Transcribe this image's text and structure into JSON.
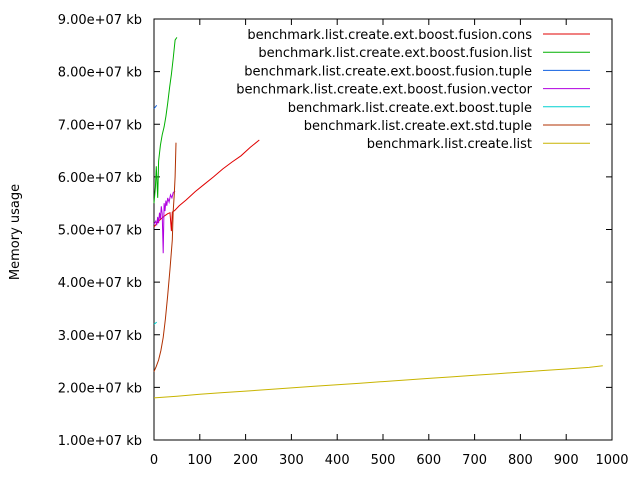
{
  "chart_data": {
    "type": "line",
    "title": "",
    "xlabel": "",
    "ylabel": "Memory usage",
    "xlim": [
      0,
      1000
    ],
    "ylim": [
      10000000,
      90000000
    ],
    "grid": false,
    "legend_position": "top-right",
    "x_ticks": [
      "0",
      "100",
      "200",
      "300",
      "400",
      "500",
      "600",
      "700",
      "800",
      "900",
      "1000"
    ],
    "y_ticks": [
      "1.00e+07 kb",
      "2.00e+07 kb",
      "3.00e+07 kb",
      "4.00e+07 kb",
      "5.00e+07 kb",
      "6.00e+07 kb",
      "7.00e+07 kb",
      "8.00e+07 kb",
      "9.00e+07 kb"
    ],
    "series": [
      {
        "name": "benchmark.list.create.ext.boost.fusion.cons",
        "color": "#e00000",
        "points": [
          [
            0,
            50500000
          ],
          [
            5,
            51000000
          ],
          [
            10,
            51600000
          ],
          [
            15,
            52000000
          ],
          [
            20,
            52400000
          ],
          [
            25,
            52700000
          ],
          [
            30,
            53000000
          ],
          [
            35,
            53200000
          ],
          [
            38,
            49700000
          ],
          [
            40,
            53300000
          ],
          [
            45,
            53600000
          ],
          [
            55,
            54500000
          ],
          [
            70,
            55600000
          ],
          [
            90,
            57200000
          ],
          [
            110,
            58600000
          ],
          [
            130,
            60000000
          ],
          [
            150,
            61500000
          ],
          [
            170,
            62800000
          ],
          [
            190,
            64000000
          ],
          [
            210,
            65600000
          ],
          [
            230,
            67000000
          ]
        ]
      },
      {
        "name": "benchmark.list.create.ext.boost.fusion.list",
        "color": "#00b000",
        "points": [
          [
            0,
            55000000
          ],
          [
            3,
            58000000
          ],
          [
            5,
            62000000
          ],
          [
            8,
            56000000
          ],
          [
            10,
            63000000
          ],
          [
            14,
            66000000
          ],
          [
            18,
            68000000
          ],
          [
            22,
            69500000
          ],
          [
            26,
            71500000
          ],
          [
            30,
            74000000
          ],
          [
            34,
            77000000
          ],
          [
            38,
            79500000
          ],
          [
            42,
            82500000
          ],
          [
            46,
            86000000
          ],
          [
            50,
            86500000
          ]
        ]
      },
      {
        "name": "benchmark.list.create.ext.boost.fusion.tuple",
        "color": "#1060e0",
        "points": [
          [
            0,
            73000000
          ],
          [
            3,
            73300000
          ],
          [
            6,
            73600000
          ]
        ]
      },
      {
        "name": "benchmark.list.create.ext.boost.fusion.vector",
        "color": "#b000e0",
        "points": [
          [
            0,
            51000000
          ],
          [
            4,
            51600000
          ],
          [
            6,
            50800000
          ],
          [
            8,
            52400000
          ],
          [
            10,
            51200000
          ],
          [
            12,
            53200000
          ],
          [
            14,
            52000000
          ],
          [
            16,
            54400000
          ],
          [
            18,
            53000000
          ],
          [
            20,
            45500000
          ],
          [
            22,
            55000000
          ],
          [
            24,
            53500000
          ],
          [
            26,
            55500000
          ],
          [
            28,
            54500000
          ],
          [
            30,
            56000000
          ],
          [
            33,
            55200000
          ],
          [
            36,
            56600000
          ],
          [
            39,
            56000000
          ],
          [
            42,
            57000000
          ],
          [
            46,
            57300000
          ]
        ]
      },
      {
        "name": "benchmark.list.create.ext.boost.tuple",
        "color": "#00d0d0",
        "points": [
          [
            0,
            32000000
          ],
          [
            3,
            32200000
          ],
          [
            6,
            32400000
          ]
        ]
      },
      {
        "name": "benchmark.list.create.ext.std.tuple",
        "color": "#b03000",
        "points": [
          [
            0,
            23000000
          ],
          [
            5,
            24000000
          ],
          [
            10,
            25200000
          ],
          [
            15,
            27000000
          ],
          [
            20,
            29500000
          ],
          [
            25,
            33000000
          ],
          [
            30,
            37500000
          ],
          [
            35,
            42500000
          ],
          [
            40,
            48000000
          ],
          [
            42,
            53500000
          ],
          [
            44,
            56500000
          ],
          [
            46,
            60000000
          ],
          [
            48,
            66500000
          ]
        ]
      },
      {
        "name": "benchmark.list.create.list",
        "color": "#c8b400",
        "points": [
          [
            0,
            18000000
          ],
          [
            50,
            18300000
          ],
          [
            100,
            18700000
          ],
          [
            150,
            19000000
          ],
          [
            200,
            19300000
          ],
          [
            250,
            19600000
          ],
          [
            300,
            19900000
          ],
          [
            350,
            20200000
          ],
          [
            400,
            20500000
          ],
          [
            450,
            20800000
          ],
          [
            500,
            21100000
          ],
          [
            550,
            21400000
          ],
          [
            600,
            21700000
          ],
          [
            650,
            22000000
          ],
          [
            700,
            22300000
          ],
          [
            750,
            22600000
          ],
          [
            800,
            22900000
          ],
          [
            850,
            23200000
          ],
          [
            900,
            23500000
          ],
          [
            950,
            23800000
          ],
          [
            980,
            24100000
          ]
        ]
      }
    ]
  }
}
